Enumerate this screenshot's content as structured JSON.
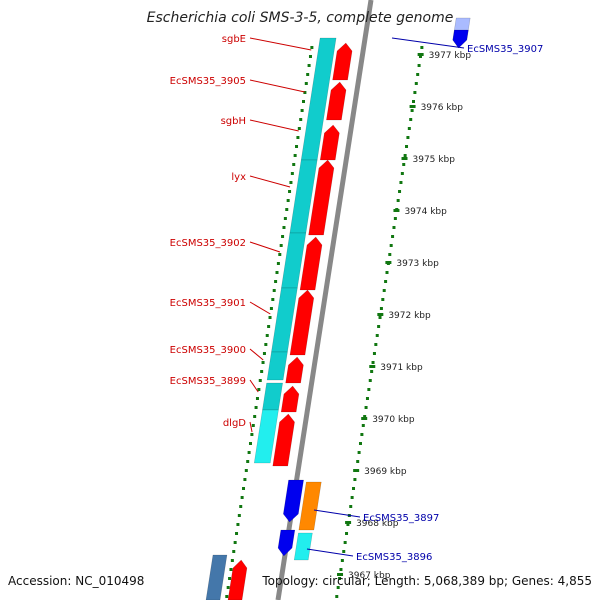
{
  "title": "Escherichia coli SMS-3-5, complete genome",
  "footer": {
    "accession": "Accession: NC_010498",
    "summary": "Topology: circular; Length: 5,068,389 bp; Genes: 4,855"
  },
  "colors": {
    "gene_red": "#ff0000",
    "label_red": "#cc0000",
    "label_blue": "#0000aa",
    "cyan": "#11cccc",
    "cyan_light": "#22eeee",
    "blue": "#0000ee",
    "orange": "#ff8800",
    "steel_blue": "#4477aa",
    "light_blue": "#aabbff",
    "backbone": "#888888",
    "tick_green": "#117711"
  },
  "scale": {
    "labels": [
      "3977 kbp",
      "3976 kbp",
      "3975 kbp",
      "3974 kbp",
      "3973 kbp",
      "3972 kbp",
      "3971 kbp",
      "3970 kbp",
      "3969 kbp",
      "3968 kbp",
      "3967 kbp"
    ]
  },
  "left_labels": [
    {
      "text": "sgbE"
    },
    {
      "text": "EcSMS35_3905"
    },
    {
      "text": "sgbH"
    },
    {
      "text": "lyx"
    },
    {
      "text": "EcSMS35_3902"
    },
    {
      "text": "EcSMS35_3901"
    },
    {
      "text": "EcSMS35_3900"
    },
    {
      "text": "EcSMS35_3899"
    },
    {
      "text": "dlgD"
    }
  ],
  "right_labels": [
    {
      "text": "EcSMS35_3907"
    },
    {
      "text": "EcSMS35_3897"
    },
    {
      "text": "EcSMS35_3896"
    }
  ]
}
